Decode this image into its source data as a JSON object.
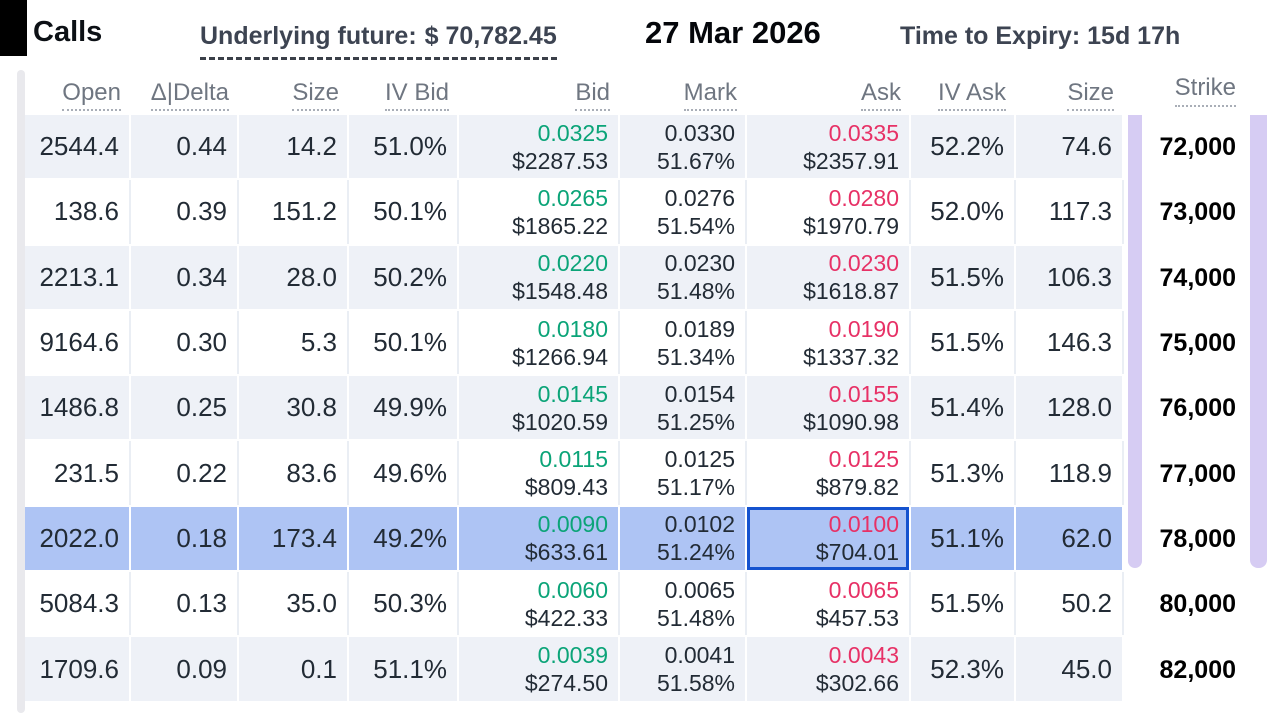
{
  "header": {
    "side_label": "Calls",
    "underlying_label": "Underlying future:",
    "underlying_value": "$ 70,782.45",
    "expiry_date": "27 Mar 2026",
    "time_to_expiry_label": "Time to Expiry:",
    "time_to_expiry_value": "15d 17h"
  },
  "columns": [
    "Open",
    "Δ|Delta",
    "Size",
    "IV Bid",
    "Bid",
    "Mark",
    "Ask",
    "IV Ask",
    "Size",
    "Strike"
  ],
  "rows": [
    {
      "open": "2544.4",
      "delta": "0.44",
      "size_bid": "14.2",
      "iv_bid": "51.0%",
      "bid_price": "0.0325",
      "bid_usd": "$2287.53",
      "mark_price": "0.0330",
      "mark_iv": "51.67%",
      "ask_price": "0.0335",
      "ask_usd": "$2357.91",
      "iv_ask": "52.2%",
      "size_ask": "74.6",
      "strike": "72,000",
      "highlighted": false,
      "ask_selected": false
    },
    {
      "open": "138.6",
      "delta": "0.39",
      "size_bid": "151.2",
      "iv_bid": "50.1%",
      "bid_price": "0.0265",
      "bid_usd": "$1865.22",
      "mark_price": "0.0276",
      "mark_iv": "51.54%",
      "ask_price": "0.0280",
      "ask_usd": "$1970.79",
      "iv_ask": "52.0%",
      "size_ask": "117.3",
      "strike": "73,000",
      "highlighted": false,
      "ask_selected": false
    },
    {
      "open": "2213.1",
      "delta": "0.34",
      "size_bid": "28.0",
      "iv_bid": "50.2%",
      "bid_price": "0.0220",
      "bid_usd": "$1548.48",
      "mark_price": "0.0230",
      "mark_iv": "51.48%",
      "ask_price": "0.0230",
      "ask_usd": "$1618.87",
      "iv_ask": "51.5%",
      "size_ask": "106.3",
      "strike": "74,000",
      "highlighted": false,
      "ask_selected": false
    },
    {
      "open": "9164.6",
      "delta": "0.30",
      "size_bid": "5.3",
      "iv_bid": "50.1%",
      "bid_price": "0.0180",
      "bid_usd": "$1266.94",
      "mark_price": "0.0189",
      "mark_iv": "51.34%",
      "ask_price": "0.0190",
      "ask_usd": "$1337.32",
      "iv_ask": "51.5%",
      "size_ask": "146.3",
      "strike": "75,000",
      "highlighted": false,
      "ask_selected": false
    },
    {
      "open": "1486.8",
      "delta": "0.25",
      "size_bid": "30.8",
      "iv_bid": "49.9%",
      "bid_price": "0.0145",
      "bid_usd": "$1020.59",
      "mark_price": "0.0154",
      "mark_iv": "51.25%",
      "ask_price": "0.0155",
      "ask_usd": "$1090.98",
      "iv_ask": "51.4%",
      "size_ask": "128.0",
      "strike": "76,000",
      "highlighted": false,
      "ask_selected": false
    },
    {
      "open": "231.5",
      "delta": "0.22",
      "size_bid": "83.6",
      "iv_bid": "49.6%",
      "bid_price": "0.0115",
      "bid_usd": "$809.43",
      "mark_price": "0.0125",
      "mark_iv": "51.17%",
      "ask_price": "0.0125",
      "ask_usd": "$879.82",
      "iv_ask": "51.3%",
      "size_ask": "118.9",
      "strike": "77,000",
      "highlighted": false,
      "ask_selected": false
    },
    {
      "open": "2022.0",
      "delta": "0.18",
      "size_bid": "173.4",
      "iv_bid": "49.2%",
      "bid_price": "0.0090",
      "bid_usd": "$633.61",
      "mark_price": "0.0102",
      "mark_iv": "51.24%",
      "ask_price": "0.0100",
      "ask_usd": "$704.01",
      "iv_ask": "51.1%",
      "size_ask": "62.0",
      "strike": "78,000",
      "highlighted": true,
      "ask_selected": true
    },
    {
      "open": "5084.3",
      "delta": "0.13",
      "size_bid": "35.0",
      "iv_bid": "50.3%",
      "bid_price": "0.0060",
      "bid_usd": "$422.33",
      "mark_price": "0.0065",
      "mark_iv": "51.48%",
      "ask_price": "0.0065",
      "ask_usd": "$457.53",
      "iv_ask": "51.5%",
      "size_ask": "50.2",
      "strike": "80,000",
      "highlighted": false,
      "ask_selected": false
    },
    {
      "open": "1709.6",
      "delta": "0.09",
      "size_bid": "0.1",
      "iv_bid": "51.1%",
      "bid_price": "0.0039",
      "bid_usd": "$274.50",
      "mark_price": "0.0041",
      "mark_iv": "51.58%",
      "ask_price": "0.0043",
      "ask_usd": "$302.66",
      "iv_ask": "52.3%",
      "size_ask": "45.0",
      "strike": "82,000",
      "highlighted": false,
      "ask_selected": false
    }
  ],
  "colors": {
    "bid_green": "#0ba478",
    "ask_red": "#e73166",
    "highlight_row": "#aec4f4",
    "stripe_row": "#eef1f7",
    "accent_bar": "#d6ccf3",
    "selected_cell_border": "#1553cf"
  }
}
